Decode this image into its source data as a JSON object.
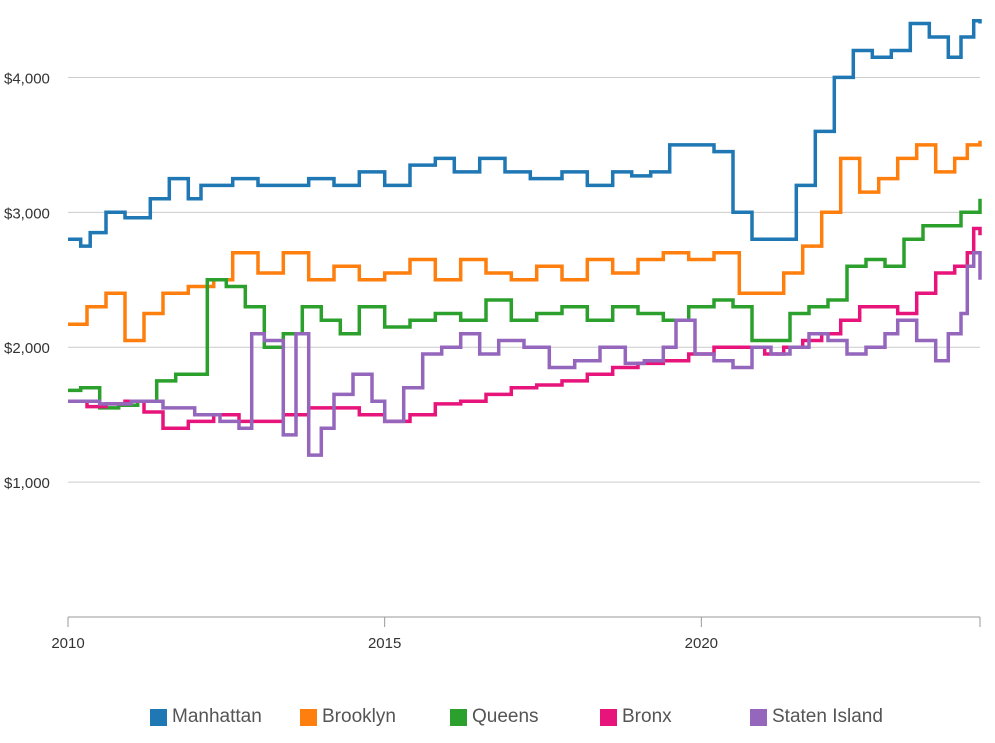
{
  "chart_data": {
    "type": "line",
    "step": true,
    "title": "",
    "xlabel": "",
    "ylabel": "",
    "xlim": [
      2010,
      2024.4
    ],
    "ylim": [
      0,
      4500
    ],
    "x_ticks": [
      2010,
      2015,
      2020
    ],
    "x_tick_labels": [
      "2010",
      "2015",
      "2020"
    ],
    "y_ticks": [
      1000,
      2000,
      3000,
      4000
    ],
    "y_tick_labels": [
      "$1,000",
      "$2,000",
      "$3,000",
      "$4,000"
    ],
    "grid": "horizontal",
    "legend_position": "bottom",
    "series": [
      {
        "name": "Manhattan",
        "color": "#1f77b4",
        "x": [
          2010,
          2010.2,
          2010.35,
          2010.6,
          2010.9,
          2011.3,
          2011.6,
          2011.9,
          2012.1,
          2012.6,
          2013.0,
          2013.5,
          2013.8,
          2014.2,
          2014.6,
          2015.0,
          2015.4,
          2015.8,
          2016.1,
          2016.5,
          2016.9,
          2017.3,
          2017.8,
          2018.2,
          2018.6,
          2018.9,
          2019.2,
          2019.5,
          2019.9,
          2020.2,
          2020.5,
          2020.8,
          2021.2,
          2021.5,
          2021.8,
          2022.1,
          2022.4,
          2022.7,
          2023.0,
          2023.3,
          2023.6,
          2023.9,
          2024.1,
          2024.3,
          2024.4
        ],
        "values": [
          2800,
          2750,
          2850,
          3000,
          2960,
          3100,
          3250,
          3100,
          3200,
          3250,
          3200,
          3200,
          3250,
          3200,
          3300,
          3200,
          3350,
          3400,
          3300,
          3400,
          3300,
          3250,
          3300,
          3200,
          3300,
          3270,
          3300,
          3500,
          3500,
          3450,
          3000,
          2800,
          2800,
          3200,
          3600,
          4000,
          4200,
          4150,
          4200,
          4400,
          4300,
          4150,
          4300,
          4420,
          4400
        ]
      },
      {
        "name": "Brooklyn",
        "color": "#ff7f0e",
        "x": [
          2010,
          2010.3,
          2010.6,
          2010.9,
          2011.2,
          2011.5,
          2011.9,
          2012.3,
          2012.6,
          2013.0,
          2013.4,
          2013.8,
          2014.2,
          2014.6,
          2015.0,
          2015.4,
          2015.8,
          2016.2,
          2016.6,
          2017.0,
          2017.4,
          2017.8,
          2018.2,
          2018.6,
          2019.0,
          2019.4,
          2019.8,
          2020.2,
          2020.6,
          2021.0,
          2021.3,
          2021.6,
          2021.9,
          2022.2,
          2022.5,
          2022.8,
          2023.1,
          2023.4,
          2023.7,
          2024.0,
          2024.2,
          2024.4
        ],
        "values": [
          2170,
          2300,
          2400,
          2050,
          2250,
          2400,
          2450,
          2500,
          2700,
          2550,
          2700,
          2500,
          2600,
          2500,
          2550,
          2650,
          2500,
          2650,
          2550,
          2500,
          2600,
          2500,
          2650,
          2550,
          2650,
          2700,
          2650,
          2700,
          2400,
          2400,
          2550,
          2750,
          3000,
          3400,
          3150,
          3250,
          3400,
          3500,
          3300,
          3400,
          3500,
          3530
        ]
      },
      {
        "name": "Queens",
        "color": "#2ca02c",
        "x": [
          2010,
          2010.2,
          2010.5,
          2010.8,
          2011.1,
          2011.4,
          2011.7,
          2012.0,
          2012.2,
          2012.5,
          2012.8,
          2013.1,
          2013.4,
          2013.7,
          2014.0,
          2014.3,
          2014.6,
          2015.0,
          2015.4,
          2015.8,
          2016.2,
          2016.6,
          2017.0,
          2017.4,
          2017.8,
          2018.2,
          2018.6,
          2019.0,
          2019.4,
          2019.8,
          2020.2,
          2020.5,
          2020.8,
          2021.1,
          2021.4,
          2021.7,
          2022.0,
          2022.3,
          2022.6,
          2022.9,
          2023.2,
          2023.5,
          2023.8,
          2024.1,
          2024.4
        ],
        "values": [
          1680,
          1700,
          1550,
          1570,
          1600,
          1750,
          1800,
          1800,
          2500,
          2450,
          2300,
          2000,
          2100,
          2300,
          2200,
          2100,
          2300,
          2150,
          2200,
          2250,
          2200,
          2350,
          2200,
          2250,
          2300,
          2200,
          2300,
          2250,
          2200,
          2300,
          2350,
          2300,
          2050,
          2050,
          2250,
          2300,
          2350,
          2600,
          2650,
          2600,
          2800,
          2900,
          2900,
          3000,
          3100
        ]
      },
      {
        "name": "Bronx",
        "color": "#e7157b",
        "x": [
          2010,
          2010.3,
          2010.6,
          2010.9,
          2011.2,
          2011.5,
          2011.9,
          2012.3,
          2012.7,
          2013.0,
          2013.4,
          2013.8,
          2014.2,
          2014.6,
          2015.0,
          2015.4,
          2015.8,
          2016.2,
          2016.6,
          2017.0,
          2017.4,
          2017.8,
          2018.2,
          2018.6,
          2019.0,
          2019.4,
          2019.8,
          2020.2,
          2020.6,
          2021.0,
          2021.3,
          2021.6,
          2021.9,
          2022.2,
          2022.5,
          2022.8,
          2023.1,
          2023.4,
          2023.7,
          2024.0,
          2024.2,
          2024.3,
          2024.4
        ],
        "values": [
          1600,
          1560,
          1580,
          1600,
          1520,
          1400,
          1450,
          1500,
          1450,
          1450,
          1500,
          1550,
          1550,
          1500,
          1450,
          1500,
          1580,
          1600,
          1650,
          1700,
          1720,
          1750,
          1800,
          1850,
          1880,
          1900,
          1950,
          2000,
          2000,
          1950,
          2000,
          2050,
          2100,
          2200,
          2300,
          2300,
          2250,
          2400,
          2550,
          2600,
          2700,
          2880,
          2830
        ]
      },
      {
        "name": "Staten Island",
        "color": "#9467bd",
        "x": [
          2010,
          2010.5,
          2011.0,
          2011.5,
          2012.0,
          2012.4,
          2012.7,
          2012.9,
          2013.1,
          2013.4,
          2013.6,
          2013.8,
          2014.0,
          2014.2,
          2014.5,
          2014.8,
          2015.0,
          2015.3,
          2015.6,
          2015.9,
          2016.2,
          2016.5,
          2016.8,
          2017.2,
          2017.6,
          2018.0,
          2018.4,
          2018.8,
          2019.1,
          2019.4,
          2019.6,
          2019.9,
          2020.2,
          2020.5,
          2020.8,
          2021.1,
          2021.4,
          2021.7,
          2022.0,
          2022.3,
          2022.6,
          2022.9,
          2023.1,
          2023.4,
          2023.7,
          2023.9,
          2024.1,
          2024.2,
          2024.3,
          2024.4
        ],
        "values": [
          1600,
          1580,
          1600,
          1550,
          1500,
          1450,
          1400,
          2100,
          2050,
          1350,
          2100,
          1200,
          1400,
          1650,
          1800,
          1600,
          1450,
          1700,
          1950,
          2000,
          2100,
          1950,
          2050,
          2000,
          1850,
          1900,
          2000,
          1880,
          1900,
          2000,
          2200,
          1950,
          1900,
          1850,
          2000,
          1950,
          2000,
          2100,
          2050,
          1950,
          2000,
          2100,
          2200,
          2050,
          1900,
          2100,
          2250,
          2600,
          2700,
          2500
        ]
      }
    ]
  }
}
